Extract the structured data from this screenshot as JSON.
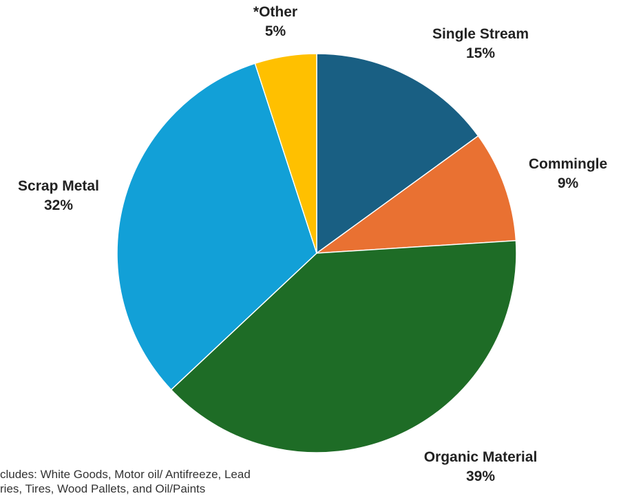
{
  "chart_data": {
    "type": "pie",
    "title": "",
    "slices": [
      {
        "label": "Single Stream",
        "pct_label": "15%",
        "value": 15,
        "color": "#195F83"
      },
      {
        "label": "Commingle",
        "pct_label": "9%",
        "value": 9,
        "color": "#E97132"
      },
      {
        "label": "Organic Material",
        "pct_label": "39%",
        "value": 39,
        "color": "#1E6C26"
      },
      {
        "label": "Scrap Metal",
        "pct_label": "32%",
        "value": 32,
        "color": "#12A0D7"
      },
      {
        "label": "*Other",
        "pct_label": "5%",
        "value": 5,
        "color": "#FFC000"
      }
    ],
    "start_angle_deg": 0,
    "direction": "clockwise"
  },
  "footnote": {
    "line1": "cludes: White Goods, Motor oil/ Antifreeze, Lead",
    "line2": "ries, Tires, Wood Pallets, and Oil/Paints"
  }
}
